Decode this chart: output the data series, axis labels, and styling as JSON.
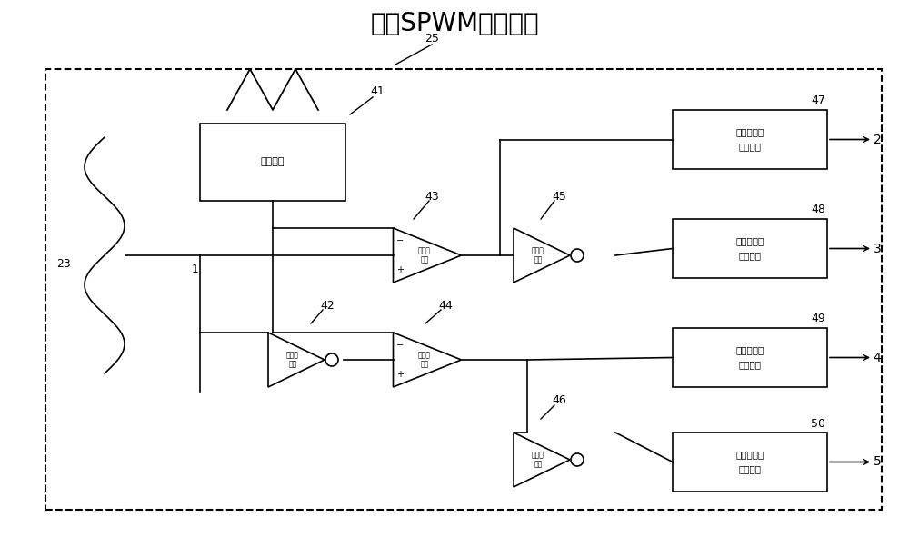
{
  "title": "倍频SPWM调制模块",
  "label_25": "25",
  "label_41": "41",
  "label_42": "42",
  "label_43": "43",
  "label_44": "44",
  "label_45": "45",
  "label_46": "46",
  "label_47": "47",
  "label_48": "48",
  "label_49": "49",
  "label_50": "50",
  "label_23": "23",
  "label_1": "1",
  "label_2": "2",
  "label_3": "3",
  "label_4": "4",
  "label_5": "5",
  "box_sanjiao": "三角载波",
  "box_diyi_fan": "第一反\n相器",
  "box_dier_bi": "第二比\n较器",
  "box_disan_bi": "第三比\n较器",
  "box_dier_fan": "第二反\n相器",
  "box_disan_fan": "第三反\n相器",
  "box_diyi_up": "第一上升沿\n延时模块",
  "box_dier_up": "第二上升沿\n延时模块",
  "box_disan_up": "第三上升沿\n延时模块",
  "box_disi_up": "第四上升沿\n延时模块",
  "bg_color": "#ffffff",
  "line_color": "#000000"
}
